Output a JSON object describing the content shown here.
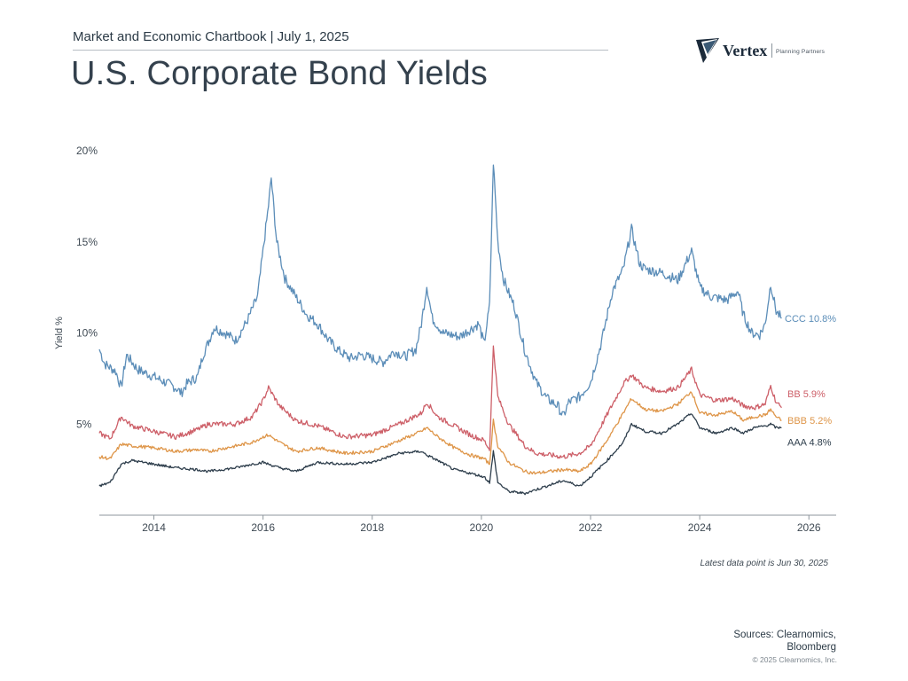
{
  "header": {
    "subtitle": "Market and Economic Chartbook | July 1, 2025",
    "title": "U.S. Corporate Bond Yields"
  },
  "logo": {
    "brand": "Vertex",
    "tagline": "Planning Partners"
  },
  "chart_data": {
    "type": "line",
    "ylabel": "Yield %",
    "xlim": [
      2013.0,
      2026.5
    ],
    "ylim": [
      0,
      20
    ],
    "x_ticks": [
      2014,
      2016,
      2018,
      2020,
      2022,
      2024,
      2026
    ],
    "x_tick_labels": [
      "2014",
      "2016",
      "2018",
      "2020",
      "2022",
      "2024",
      "2026"
    ],
    "y_ticks": [
      5,
      10,
      15,
      20
    ],
    "y_tick_labels": [
      "5%",
      "10%",
      "15%",
      "20%"
    ],
    "grid": false,
    "series": [
      {
        "name": "CCC",
        "end_label": "CCC 10.8%",
        "color": "#5b8db8",
        "points": [
          [
            2013.0,
            9.1
          ],
          [
            2013.1,
            8.3
          ],
          [
            2013.3,
            7.9
          ],
          [
            2013.4,
            7.0
          ],
          [
            2013.5,
            8.8
          ],
          [
            2013.7,
            8.0
          ],
          [
            2014.0,
            7.6
          ],
          [
            2014.2,
            7.3
          ],
          [
            2014.4,
            7.0
          ],
          [
            2014.5,
            6.7
          ],
          [
            2014.6,
            7.2
          ],
          [
            2014.8,
            7.6
          ],
          [
            2014.9,
            8.8
          ],
          [
            2015.0,
            9.5
          ],
          [
            2015.1,
            10.3
          ],
          [
            2015.3,
            10.0
          ],
          [
            2015.5,
            9.6
          ],
          [
            2015.7,
            10.6
          ],
          [
            2015.9,
            12.0
          ],
          [
            2016.0,
            14.5
          ],
          [
            2016.1,
            17.0
          ],
          [
            2016.15,
            18.5
          ],
          [
            2016.25,
            15.0
          ],
          [
            2016.4,
            13.0
          ],
          [
            2016.6,
            12.0
          ],
          [
            2016.8,
            11.0
          ],
          [
            2017.0,
            10.5
          ],
          [
            2017.2,
            9.6
          ],
          [
            2017.4,
            9.0
          ],
          [
            2017.6,
            8.6
          ],
          [
            2017.8,
            8.8
          ],
          [
            2018.0,
            8.6
          ],
          [
            2018.2,
            8.4
          ],
          [
            2018.4,
            9.0
          ],
          [
            2018.6,
            8.7
          ],
          [
            2018.8,
            9.1
          ],
          [
            2018.9,
            10.5
          ],
          [
            2019.0,
            12.6
          ],
          [
            2019.1,
            10.8
          ],
          [
            2019.3,
            10.0
          ],
          [
            2019.6,
            9.8
          ],
          [
            2019.8,
            10.2
          ],
          [
            2019.95,
            10.5
          ],
          [
            2020.05,
            9.4
          ],
          [
            2020.15,
            11.5
          ],
          [
            2020.22,
            19.4
          ],
          [
            2020.3,
            15.0
          ],
          [
            2020.4,
            13.0
          ],
          [
            2020.5,
            12.2
          ],
          [
            2020.6,
            11.5
          ],
          [
            2020.8,
            9.0
          ],
          [
            2021.0,
            7.3
          ],
          [
            2021.2,
            6.4
          ],
          [
            2021.4,
            6.0
          ],
          [
            2021.5,
            5.4
          ],
          [
            2021.6,
            6.2
          ],
          [
            2021.8,
            6.5
          ],
          [
            2022.0,
            7.3
          ],
          [
            2022.2,
            9.5
          ],
          [
            2022.4,
            12.3
          ],
          [
            2022.6,
            13.5
          ],
          [
            2022.75,
            15.7
          ],
          [
            2022.9,
            13.8
          ],
          [
            2023.0,
            13.5
          ],
          [
            2023.3,
            13.3
          ],
          [
            2023.6,
            12.9
          ],
          [
            2023.85,
            14.5
          ],
          [
            2024.0,
            12.5
          ],
          [
            2024.2,
            12.0
          ],
          [
            2024.5,
            11.8
          ],
          [
            2024.7,
            12.3
          ],
          [
            2024.8,
            11.0
          ],
          [
            2024.95,
            10.0
          ],
          [
            2025.1,
            9.9
          ],
          [
            2025.2,
            10.5
          ],
          [
            2025.3,
            12.7
          ],
          [
            2025.4,
            11.2
          ],
          [
            2025.5,
            10.8
          ]
        ]
      },
      {
        "name": "BB",
        "end_label": "BB 5.9%",
        "color": "#cd5f68",
        "points": [
          [
            2013.0,
            4.5
          ],
          [
            2013.2,
            4.2
          ],
          [
            2013.4,
            5.4
          ],
          [
            2013.6,
            4.9
          ],
          [
            2014.0,
            4.6
          ],
          [
            2014.4,
            4.3
          ],
          [
            2014.8,
            4.7
          ],
          [
            2015.0,
            5.0
          ],
          [
            2015.5,
            5.0
          ],
          [
            2015.8,
            5.4
          ],
          [
            2016.0,
            6.3
          ],
          [
            2016.1,
            7.0
          ],
          [
            2016.3,
            6.0
          ],
          [
            2016.6,
            5.2
          ],
          [
            2017.0,
            4.9
          ],
          [
            2017.5,
            4.3
          ],
          [
            2018.0,
            4.4
          ],
          [
            2018.5,
            5.0
          ],
          [
            2018.9,
            5.6
          ],
          [
            2019.0,
            6.2
          ],
          [
            2019.2,
            5.4
          ],
          [
            2019.5,
            4.9
          ],
          [
            2019.8,
            4.4
          ],
          [
            2020.05,
            4.1
          ],
          [
            2020.15,
            3.6
          ],
          [
            2020.22,
            9.3
          ],
          [
            2020.3,
            6.5
          ],
          [
            2020.5,
            5.0
          ],
          [
            2020.8,
            3.8
          ],
          [
            2021.0,
            3.4
          ],
          [
            2021.5,
            3.2
          ],
          [
            2021.8,
            3.4
          ],
          [
            2022.0,
            3.8
          ],
          [
            2022.3,
            5.5
          ],
          [
            2022.6,
            7.2
          ],
          [
            2022.75,
            7.7
          ],
          [
            2023.0,
            7.0
          ],
          [
            2023.3,
            6.8
          ],
          [
            2023.6,
            7.0
          ],
          [
            2023.85,
            8.0
          ],
          [
            2024.0,
            6.6
          ],
          [
            2024.3,
            6.3
          ],
          [
            2024.6,
            6.4
          ],
          [
            2024.8,
            6.0
          ],
          [
            2025.0,
            5.9
          ],
          [
            2025.2,
            6.1
          ],
          [
            2025.3,
            7.1
          ],
          [
            2025.4,
            6.2
          ],
          [
            2025.5,
            5.9
          ]
        ]
      },
      {
        "name": "BBB",
        "end_label": "BBB 5.2%",
        "color": "#de9548",
        "points": [
          [
            2013.0,
            3.2
          ],
          [
            2013.2,
            3.1
          ],
          [
            2013.4,
            3.9
          ],
          [
            2013.6,
            3.8
          ],
          [
            2014.0,
            3.7
          ],
          [
            2014.4,
            3.5
          ],
          [
            2014.8,
            3.6
          ],
          [
            2015.0,
            3.5
          ],
          [
            2015.5,
            3.8
          ],
          [
            2015.8,
            4.0
          ],
          [
            2016.0,
            4.3
          ],
          [
            2016.1,
            4.4
          ],
          [
            2016.3,
            4.0
          ],
          [
            2016.6,
            3.5
          ],
          [
            2017.0,
            3.7
          ],
          [
            2017.5,
            3.4
          ],
          [
            2018.0,
            3.5
          ],
          [
            2018.5,
            4.1
          ],
          [
            2018.9,
            4.6
          ],
          [
            2019.0,
            4.8
          ],
          [
            2019.2,
            4.3
          ],
          [
            2019.5,
            3.7
          ],
          [
            2019.8,
            3.3
          ],
          [
            2020.05,
            3.1
          ],
          [
            2020.15,
            2.8
          ],
          [
            2020.22,
            5.2
          ],
          [
            2020.3,
            3.8
          ],
          [
            2020.5,
            2.9
          ],
          [
            2020.8,
            2.4
          ],
          [
            2021.0,
            2.3
          ],
          [
            2021.5,
            2.5
          ],
          [
            2021.8,
            2.4
          ],
          [
            2022.0,
            2.8
          ],
          [
            2022.3,
            4.1
          ],
          [
            2022.6,
            5.6
          ],
          [
            2022.75,
            6.4
          ],
          [
            2023.0,
            5.8
          ],
          [
            2023.3,
            5.7
          ],
          [
            2023.6,
            6.1
          ],
          [
            2023.85,
            6.8
          ],
          [
            2024.0,
            5.6
          ],
          [
            2024.3,
            5.5
          ],
          [
            2024.6,
            5.7
          ],
          [
            2024.8,
            5.2
          ],
          [
            2025.0,
            5.4
          ],
          [
            2025.2,
            5.5
          ],
          [
            2025.3,
            5.8
          ],
          [
            2025.4,
            5.4
          ],
          [
            2025.5,
            5.2
          ]
        ]
      },
      {
        "name": "AAA",
        "end_label": "AAA 4.8%",
        "color": "#2d3d4b",
        "points": [
          [
            2013.0,
            1.6
          ],
          [
            2013.2,
            1.8
          ],
          [
            2013.4,
            2.8
          ],
          [
            2013.6,
            3.0
          ],
          [
            2014.0,
            2.8
          ],
          [
            2014.4,
            2.6
          ],
          [
            2014.8,
            2.5
          ],
          [
            2015.0,
            2.4
          ],
          [
            2015.5,
            2.6
          ],
          [
            2015.8,
            2.8
          ],
          [
            2016.0,
            2.9
          ],
          [
            2016.3,
            2.6
          ],
          [
            2016.6,
            2.4
          ],
          [
            2017.0,
            2.9
          ],
          [
            2017.5,
            2.8
          ],
          [
            2018.0,
            2.9
          ],
          [
            2018.5,
            3.4
          ],
          [
            2018.9,
            3.5
          ],
          [
            2019.0,
            3.3
          ],
          [
            2019.2,
            3.0
          ],
          [
            2019.5,
            2.5
          ],
          [
            2019.8,
            2.3
          ],
          [
            2020.05,
            2.1
          ],
          [
            2020.15,
            1.8
          ],
          [
            2020.22,
            3.5
          ],
          [
            2020.3,
            1.8
          ],
          [
            2020.5,
            1.3
          ],
          [
            2020.8,
            1.2
          ],
          [
            2021.0,
            1.4
          ],
          [
            2021.5,
            1.9
          ],
          [
            2021.8,
            1.6
          ],
          [
            2022.0,
            2.1
          ],
          [
            2022.3,
            3.0
          ],
          [
            2022.6,
            4.0
          ],
          [
            2022.75,
            5.0
          ],
          [
            2023.0,
            4.6
          ],
          [
            2023.3,
            4.5
          ],
          [
            2023.6,
            5.0
          ],
          [
            2023.85,
            5.6
          ],
          [
            2024.0,
            4.8
          ],
          [
            2024.3,
            4.5
          ],
          [
            2024.6,
            4.8
          ],
          [
            2024.8,
            4.5
          ],
          [
            2025.0,
            4.8
          ],
          [
            2025.2,
            4.9
          ],
          [
            2025.3,
            5.0
          ],
          [
            2025.4,
            4.8
          ],
          [
            2025.5,
            4.8
          ]
        ]
      }
    ]
  },
  "note": "Latest data point is Jun 30, 2025",
  "sources": {
    "line1": "Sources: Clearnomics,",
    "line2": "Bloomberg"
  },
  "copyright": "© 2025 Clearnomics, Inc."
}
